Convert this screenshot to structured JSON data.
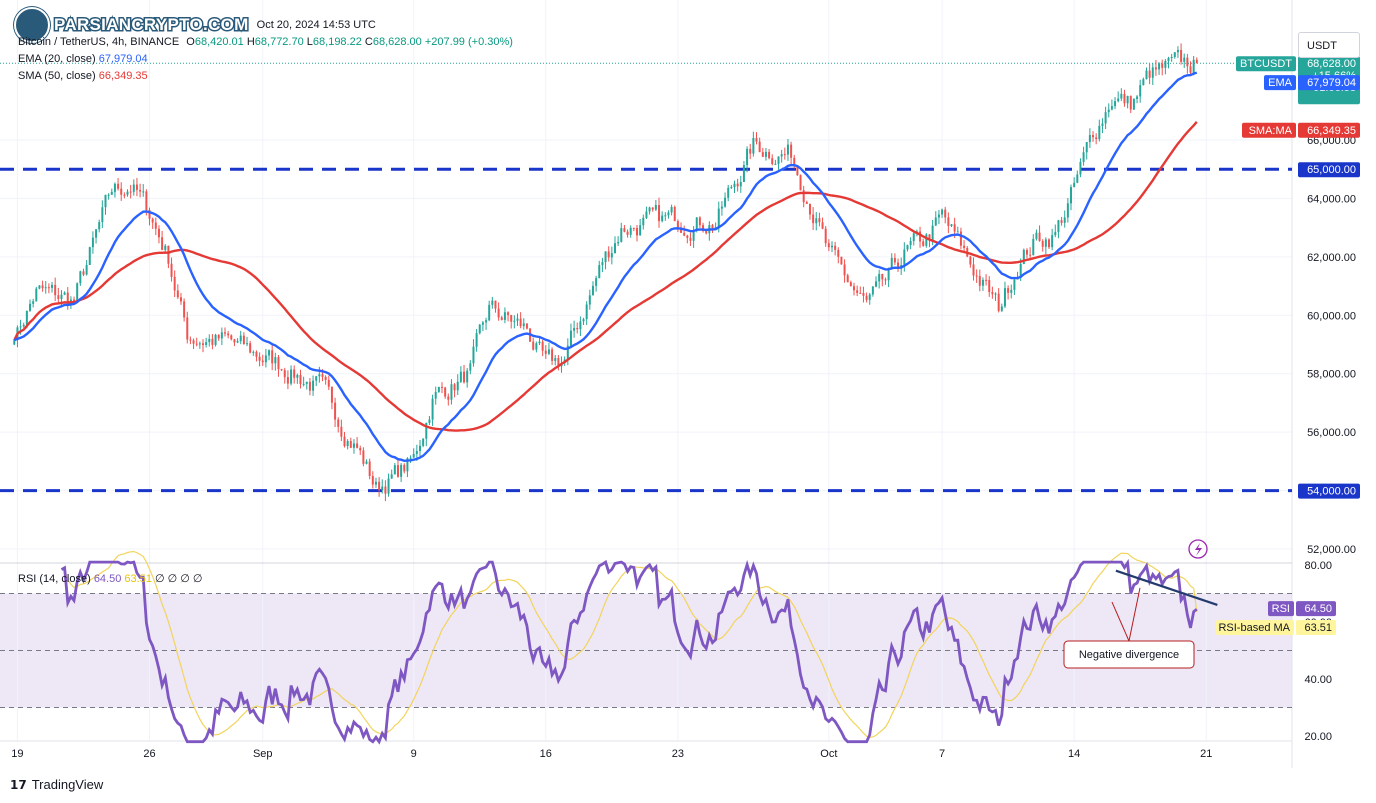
{
  "header": {
    "watermark": "PARSIANCRYPTO.COM",
    "published_line": "Oct 20, 2024 14:53 UTC"
  },
  "legend": {
    "symbol_line": "Bitcoin / TetherUS, 4h, BINANCE",
    "o_label": "O",
    "o_value": "68,420.01",
    "h_label": "H",
    "h_value": "68,772.70",
    "l_label": "L",
    "l_value": "68,198.22",
    "c_label": "C",
    "c_value": "68,628.00",
    "change": "+207.99 (+0.30%)",
    "ema_label": "EMA (20, close)",
    "ema_value": "67,979.04",
    "sma_label": "SMA (50, close)",
    "sma_value": "66,349.35",
    "rsi_label": "RSI (14, close)",
    "rsi_value": "64.50",
    "rsi_ma_value": "63.51",
    "rsi_extra": "∅ ∅ ∅ ∅"
  },
  "currency_button": "USDT",
  "footer": {
    "brand": "TradingView"
  },
  "colors": {
    "up": "#26a69a",
    "down": "#ef5350",
    "ema": "#2962ff",
    "sma": "#e53935",
    "level": "#1a35c9",
    "rsi": "#7e57c2",
    "rsi_ma": "#f2d45c",
    "rsi_band": "#ede7f6",
    "trend": "#243b6e",
    "annotation": "#b71c1c"
  },
  "chart_data": [
    {
      "type": "candlestick",
      "title": "Bitcoin / TetherUS, 4h, BINANCE",
      "x_ticks": [
        "19",
        "26",
        "Sep",
        "9",
        "16",
        "23",
        "Oct",
        "7",
        "14",
        "21"
      ],
      "y_ticks": [
        "52,000.00",
        "54,000.00",
        "56,000.00",
        "58,000.00",
        "60,000.00",
        "62,000.00",
        "64,000.00",
        "66,000.00"
      ],
      "ylim": [
        51000,
        69500
      ],
      "anchors": [
        {
          "date": "2024-08-19",
          "close": 59500
        },
        {
          "date": "2024-08-20",
          "close": 60800
        },
        {
          "date": "2024-08-22",
          "close": 60500
        },
        {
          "date": "2024-08-24",
          "close": 64200
        },
        {
          "date": "2024-08-25",
          "close": 64500
        },
        {
          "date": "2024-08-26",
          "close": 63500
        },
        {
          "date": "2024-08-27",
          "close": 62000
        },
        {
          "date": "2024-08-28",
          "close": 59300
        },
        {
          "date": "2024-08-30",
          "close": 59100
        },
        {
          "date": "2024-09-02",
          "close": 58300
        },
        {
          "date": "2024-09-04",
          "close": 57500
        },
        {
          "date": "2024-09-06",
          "close": 55500
        },
        {
          "date": "2024-09-07",
          "close": 54100
        },
        {
          "date": "2024-09-08",
          "close": 54500
        },
        {
          "date": "2024-09-09",
          "close": 55000
        },
        {
          "date": "2024-09-10",
          "close": 57200
        },
        {
          "date": "2024-09-12",
          "close": 58000
        },
        {
          "date": "2024-09-13",
          "close": 60200
        },
        {
          "date": "2024-09-15",
          "close": 59500
        },
        {
          "date": "2024-09-16",
          "close": 58200
        },
        {
          "date": "2024-09-17",
          "close": 58500
        },
        {
          "date": "2024-09-19",
          "close": 61800
        },
        {
          "date": "2024-09-20",
          "close": 63000
        },
        {
          "date": "2024-09-23",
          "close": 63300
        },
        {
          "date": "2024-09-25",
          "close": 63200
        },
        {
          "date": "2024-09-27",
          "close": 65800
        },
        {
          "date": "2024-09-29",
          "close": 65500
        },
        {
          "date": "2024-09-30",
          "close": 64000
        },
        {
          "date": "2024-10-01",
          "close": 62000
        },
        {
          "date": "2024-10-03",
          "close": 60300
        },
        {
          "date": "2024-10-04",
          "close": 61000
        },
        {
          "date": "2024-10-05",
          "close": 62100
        },
        {
          "date": "2024-10-06",
          "close": 62500
        },
        {
          "date": "2024-10-07",
          "close": 63300
        },
        {
          "date": "2024-10-08",
          "close": 62300
        },
        {
          "date": "2024-10-10",
          "close": 60200
        },
        {
          "date": "2024-10-11",
          "close": 61800
        },
        {
          "date": "2024-10-12",
          "close": 62600
        },
        {
          "date": "2024-10-13",
          "close": 62800
        },
        {
          "date": "2024-10-14",
          "close": 64300
        },
        {
          "date": "2024-10-15",
          "close": 66200
        },
        {
          "date": "2024-10-16",
          "close": 67500
        },
        {
          "date": "2024-10-17",
          "close": 67200
        },
        {
          "date": "2024-10-18",
          "close": 68200
        },
        {
          "date": "2024-10-19",
          "close": 68400
        },
        {
          "date": "2024-10-20",
          "close": 68628
        }
      ],
      "horizontal_levels": [
        {
          "price": 65000,
          "label": "65,000.00"
        },
        {
          "price": 54000,
          "label": "54,000.00"
        }
      ],
      "last_price_tag": {
        "symbol": "BTCUSDT",
        "price": "68,628.00",
        "change": "+15.66%",
        "countdown": "01:06:58"
      },
      "ema_tag": {
        "label": "EMA",
        "value": "67,979.04"
      },
      "sma_tag": {
        "label": "SMA:MA",
        "value": "66,349.35"
      }
    },
    {
      "type": "line",
      "title": "RSI (14, close)",
      "y_ticks": [
        "20.00",
        "40.00",
        "60.00",
        "80.00"
      ],
      "ylim": [
        17,
        82
      ],
      "bands": [
        30,
        70
      ],
      "middle": 50,
      "rsi_tag": {
        "label": "RSI",
        "value": "64.50"
      },
      "rsi_ma_tag": {
        "label": "RSI-based MA",
        "value": "63.51"
      },
      "annotation": "Negative divergence"
    }
  ]
}
